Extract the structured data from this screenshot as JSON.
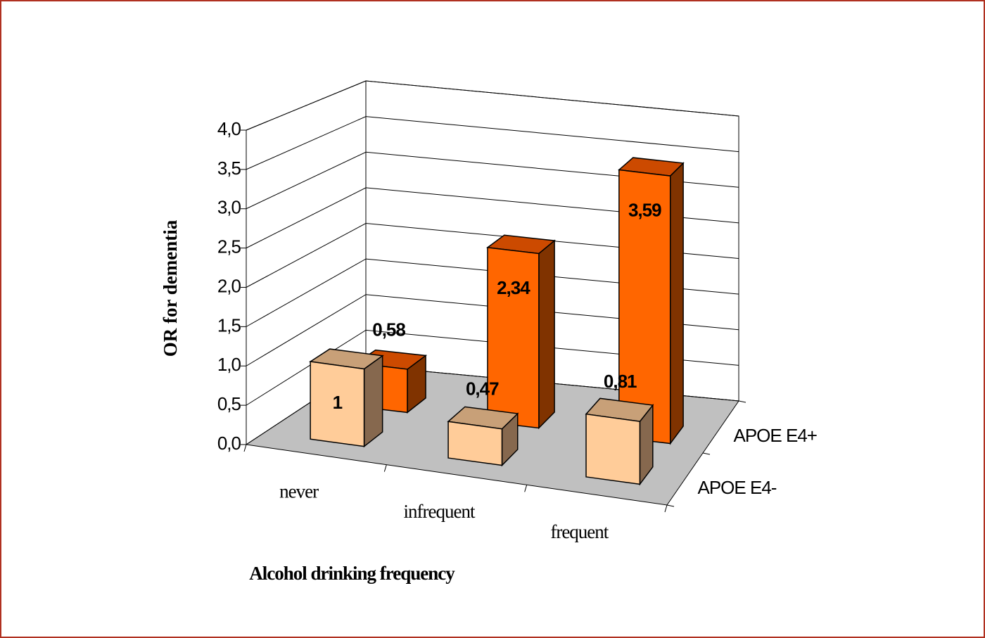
{
  "chart_data": {
    "type": "bar3d",
    "categories": [
      "never",
      "infrequent",
      "frequent"
    ],
    "series": [
      {
        "name": "APOE E4-",
        "color": "#ffcc99",
        "values": [
          1,
          0.47,
          0.81
        ],
        "value_labels": [
          "1",
          "0,47",
          "0,81"
        ]
      },
      {
        "name": "APOE E4+",
        "color": "#ff6600",
        "values": [
          0.58,
          2.34,
          3.59
        ],
        "value_labels": [
          "0,58",
          "2,34",
          "3,59"
        ]
      }
    ],
    "ylim": [
      0,
      4
    ],
    "yticks": [
      {
        "value": 0,
        "label": "0,0"
      },
      {
        "value": 0.5,
        "label": "0,5"
      },
      {
        "value": 1,
        "label": "1,0"
      },
      {
        "value": 1.5,
        "label": "1,5"
      },
      {
        "value": 2,
        "label": "2,0"
      },
      {
        "value": 2.5,
        "label": "2,5"
      },
      {
        "value": 3,
        "label": "3,0"
      },
      {
        "value": 3.5,
        "label": "3,5"
      },
      {
        "value": 4,
        "label": "4,0"
      }
    ],
    "ylabel": "OR for dementia",
    "xlabel": "Alcohol drinking frequency",
    "grid": true
  }
}
